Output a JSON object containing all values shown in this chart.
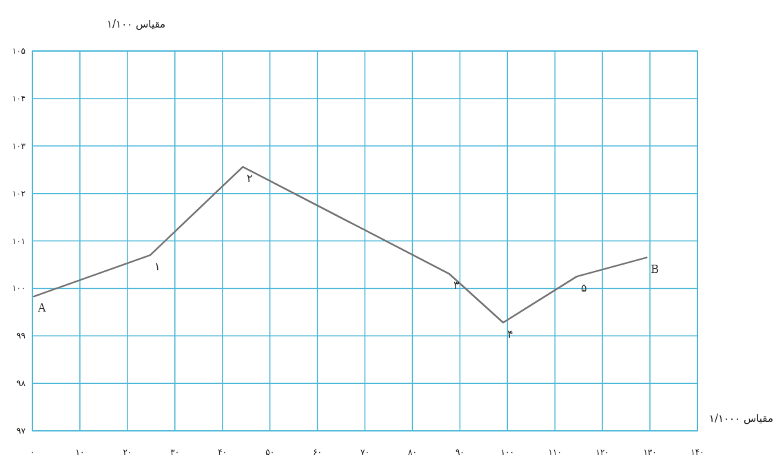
{
  "chart_data": {
    "type": "line",
    "xlabel": "مقیاس ۱/۱۰۰۰",
    "ylabel": "مقیاس ۱/۱۰۰",
    "x": [
      0.3,
      24.8,
      44.3,
      87.7,
      99.1,
      114.6,
      129.3
    ],
    "values": [
      99.83,
      100.7,
      102.56,
      100.31,
      99.28,
      100.25,
      100.65
    ],
    "color": "#777777",
    "line_style": "solid",
    "marker": "none",
    "grid": true,
    "xlim": [
      0,
      140
    ],
    "ylim": [
      97,
      105
    ],
    "xticks": [
      {
        "value": 0,
        "label": "۰"
      },
      {
        "value": 10,
        "label": "۱۰"
      },
      {
        "value": 20,
        "label": "۲۰"
      },
      {
        "value": 30,
        "label": "۳۰"
      },
      {
        "value": 40,
        "label": "۴۰"
      },
      {
        "value": 50,
        "label": "۵۰"
      },
      {
        "value": 60,
        "label": "۶۰"
      },
      {
        "value": 70,
        "label": "۷۰"
      },
      {
        "value": 80,
        "label": "۸۰"
      },
      {
        "value": 90,
        "label": "۹۰"
      },
      {
        "value": 100,
        "label": "۱۰۰"
      },
      {
        "value": 110,
        "label": "۱۱۰"
      },
      {
        "value": 120,
        "label": "۱۲۰"
      },
      {
        "value": 130,
        "label": "۱۳۰"
      },
      {
        "value": 140,
        "label": "۱۴۰"
      }
    ],
    "yticks": [
      {
        "value": 97,
        "label": "۹۷"
      },
      {
        "value": 98,
        "label": "۹۸"
      },
      {
        "value": 99,
        "label": "۹۹"
      },
      {
        "value": 100,
        "label": "۱۰۰"
      },
      {
        "value": 101,
        "label": "۱۰۱"
      },
      {
        "value": 102,
        "label": "۱۰۲"
      },
      {
        "value": 103,
        "label": "۱۰۳"
      },
      {
        "value": 104,
        "label": "۱۰۴"
      },
      {
        "value": 105,
        "label": "۱۰۵"
      }
    ],
    "annotations": [
      {
        "text": "A",
        "x": 0.3,
        "y": 99.83
      },
      {
        "text": "۱",
        "x": 24.8,
        "y": 100.7
      },
      {
        "text": "۲",
        "x": 44.3,
        "y": 102.56
      },
      {
        "text": "۳",
        "x": 87.7,
        "y": 100.31
      },
      {
        "text": "۴",
        "x": 99.1,
        "y": 99.28
      },
      {
        "text": "۵",
        "x": 114.6,
        "y": 100.25
      },
      {
        "text": "B",
        "x": 129.3,
        "y": 100.65
      }
    ]
  }
}
